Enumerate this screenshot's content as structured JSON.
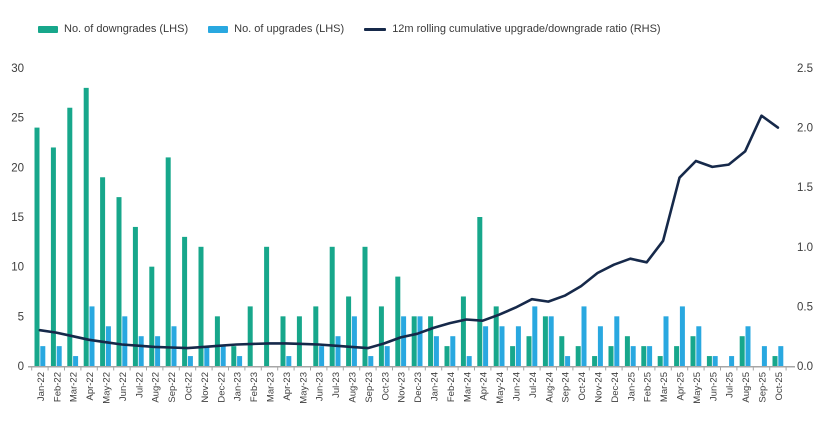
{
  "legend": [
    {
      "label": "No. of downgrades (LHS)",
      "color": "#17a78b",
      "swatch": "bar"
    },
    {
      "label": "No. of upgrades (LHS)",
      "color": "#29a8e0",
      "swatch": "bar"
    },
    {
      "label": "12m rolling cumulative upgrade/downgrade ratio (RHS)",
      "color": "#16294a",
      "swatch": "line"
    }
  ],
  "colors": {
    "downgrades": "#17a78b",
    "upgrades": "#29a8e0",
    "ratio_line": "#16294a",
    "axis_text": "#3d3d3d",
    "axis_line": "#a6a6a6"
  },
  "chart_data": {
    "type": "bar",
    "subtype": "grouped bars with overlaid line (dual axis)",
    "title": "",
    "xlabel": "",
    "ylabel_left": "",
    "ylabel_right": "",
    "grid": false,
    "legend_position": "top",
    "categories": [
      "Jan-22",
      "Feb-22",
      "Mar-22",
      "Apr-22",
      "May-22",
      "Jun-22",
      "Jul-22",
      "Aug-22",
      "Sep-22",
      "Oct-22",
      "Nov-22",
      "Dec-22",
      "Jan-23",
      "Feb-23",
      "Mar-23",
      "Apr-23",
      "May-23",
      "Jun-23",
      "Jul-23",
      "Aug-23",
      "Sep-23",
      "Oct-23",
      "Nov-23",
      "Dec-23",
      "Jan-24",
      "Feb-24",
      "Mar-24",
      "Apr-24",
      "May-24",
      "Jun-24",
      "Jul-24",
      "Aug-24",
      "Sep-24",
      "Oct-24",
      "Nov-24",
      "Dec-24",
      "Jan-25",
      "Feb-25",
      "Mar-25",
      "Apr-25",
      "May-25",
      "Jun-25",
      "Jul-25",
      "Aug-25",
      "Sep-25",
      "Oct-25"
    ],
    "series": [
      {
        "name": "No. of downgrades (LHS)",
        "type": "bar",
        "axis": "left",
        "color": "#17a78b",
        "values": [
          24,
          22,
          26,
          28,
          19,
          17,
          14,
          10,
          21,
          13,
          12,
          5,
          2,
          6,
          12,
          5,
          5,
          6,
          12,
          7,
          12,
          6,
          9,
          5,
          5,
          2,
          7,
          15,
          6,
          2,
          3,
          5,
          3,
          2,
          1,
          2,
          3,
          2,
          1,
          2,
          3,
          1,
          0,
          3,
          0,
          1
        ]
      },
      {
        "name": "No. of upgrades (LHS)",
        "type": "bar",
        "axis": "left",
        "color": "#29a8e0",
        "values": [
          2,
          2,
          1,
          6,
          4,
          5,
          3,
          3,
          4,
          1,
          2,
          2,
          1,
          0,
          0,
          1,
          0,
          2,
          3,
          5,
          1,
          2,
          5,
          5,
          3,
          3,
          1,
          4,
          4,
          4,
          6,
          5,
          1,
          6,
          4,
          5,
          2,
          2,
          5,
          6,
          4,
          1,
          1,
          4,
          2,
          2
        ]
      },
      {
        "name": "12m rolling cumulative upgrade/downgrade ratio (RHS)",
        "type": "line",
        "axis": "right",
        "color": "#16294a",
        "values": [
          0.3,
          0.28,
          0.25,
          0.22,
          0.2,
          0.18,
          0.17,
          0.16,
          0.155,
          0.15,
          0.16,
          0.17,
          0.18,
          0.185,
          0.19,
          0.19,
          0.185,
          0.18,
          0.17,
          0.16,
          0.15,
          0.19,
          0.24,
          0.27,
          0.32,
          0.36,
          0.39,
          0.38,
          0.43,
          0.49,
          0.56,
          0.54,
          0.59,
          0.67,
          0.78,
          0.85,
          0.9,
          0.87,
          1.05,
          1.58,
          1.72,
          1.67,
          1.69,
          1.8,
          2.1,
          2.0
        ]
      }
    ],
    "left_axis": {
      "ticks": [
        "0",
        "5",
        "10",
        "15",
        "20",
        "25",
        "30"
      ],
      "range": [
        0,
        30
      ]
    },
    "right_axis": {
      "ticks": [
        "0.0",
        "0.5",
        "1.0",
        "1.5",
        "2.0",
        "2.5"
      ],
      "range": [
        0,
        2.5
      ]
    }
  }
}
